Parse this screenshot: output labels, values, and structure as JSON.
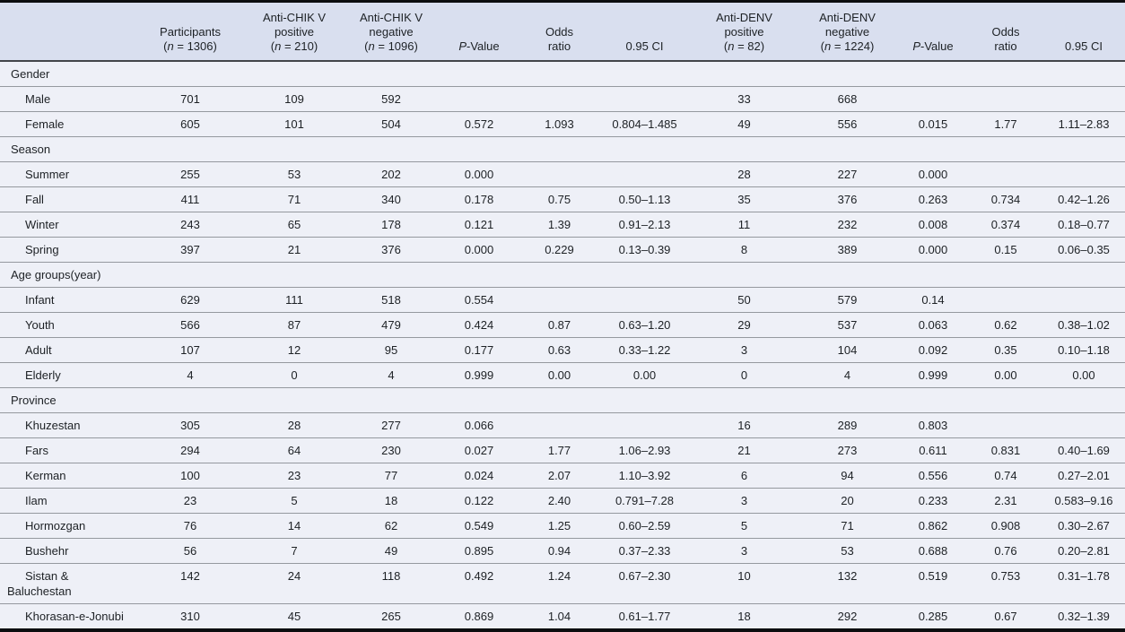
{
  "colors": {
    "header_bg": "#d9dfef",
    "row_bg": "#eef0f7",
    "rule_thin": "#95999f",
    "rule_dark": "#43464a",
    "border_black": "#0c0d0f",
    "text": "#1d2125"
  },
  "table": {
    "columns": [
      {
        "id": "label",
        "header": ""
      },
      {
        "id": "participants",
        "header": "Participants\n(*n* = 1306)"
      },
      {
        "id": "chik_positive",
        "header": "Anti-CHIK V\npositive\n(*n* = 210)"
      },
      {
        "id": "chik_negative",
        "header": "Anti-CHIK V\nnegative\n(*n* = 1096)"
      },
      {
        "id": "chik_p_value",
        "header": "*P*-Value"
      },
      {
        "id": "chik_odds_ratio",
        "header": "Odds\nratio"
      },
      {
        "id": "chik_ci",
        "header": "0.95 CI"
      },
      {
        "id": "denv_positive",
        "header": "Anti-DENV\npositive\n(*n* = 82)"
      },
      {
        "id": "denv_negative",
        "header": "Anti-DENV\nnegative\n(*n* = 1224)"
      },
      {
        "id": "denv_p_value",
        "header": "*P*-Value"
      },
      {
        "id": "denv_odds_ratio",
        "header": "Odds\nratio"
      },
      {
        "id": "denv_ci",
        "header": "0.95 CI"
      }
    ],
    "sections": [
      {
        "name": "Gender",
        "rows": [
          {
            "label": "Male",
            "cells": [
              "701",
              "109",
              "592",
              "",
              "",
              "",
              "33",
              "668",
              "",
              "",
              ""
            ]
          },
          {
            "label": "Female",
            "cells": [
              "605",
              "101",
              "504",
              "0.572",
              "1.093",
              "0.804–1.485",
              "49",
              "556",
              "0.015",
              "1.77",
              "1.11–2.83"
            ]
          }
        ]
      },
      {
        "name": "Season",
        "rows": [
          {
            "label": "Summer",
            "cells": [
              "255",
              "53",
              "202",
              "0.000",
              "",
              "",
              "28",
              "227",
              "0.000",
              "",
              ""
            ]
          },
          {
            "label": "Fall",
            "cells": [
              "411",
              "71",
              "340",
              "0.178",
              "0.75",
              "0.50–1.13",
              "35",
              "376",
              "0.263",
              "0.734",
              "0.42–1.26"
            ]
          },
          {
            "label": "Winter",
            "cells": [
              "243",
              "65",
              "178",
              "0.121",
              "1.39",
              "0.91–2.13",
              "11",
              "232",
              "0.008",
              "0.374",
              "0.18–0.77"
            ]
          },
          {
            "label": "Spring",
            "cells": [
              "397",
              "21",
              "376",
              "0.000",
              "0.229",
              "0.13–0.39",
              "8",
              "389",
              "0.000",
              "0.15",
              "0.06–0.35"
            ]
          }
        ]
      },
      {
        "name": "Age groups(year)",
        "rows": [
          {
            "label": "Infant",
            "cells": [
              "629",
              "111",
              "518",
              "0.554",
              "",
              "",
              "50",
              "579",
              "0.14",
              "",
              ""
            ]
          },
          {
            "label": "Youth",
            "cells": [
              "566",
              "87",
              "479",
              "0.424",
              "0.87",
              "0.63–1.20",
              "29",
              "537",
              "0.063",
              "0.62",
              "0.38–1.02"
            ]
          },
          {
            "label": "Adult",
            "cells": [
              "107",
              "12",
              "95",
              "0.177",
              "0.63",
              "0.33–1.22",
              "3",
              "104",
              "0.092",
              "0.35",
              "0.10–1.18"
            ]
          },
          {
            "label": "Elderly",
            "cells": [
              "4",
              "0",
              "4",
              "0.999",
              "0.00",
              "0.00",
              "0",
              "4",
              "0.999",
              "0.00",
              "0.00"
            ]
          }
        ]
      },
      {
        "name": "Province",
        "rows": [
          {
            "label": "Khuzestan",
            "cells": [
              "305",
              "28",
              "277",
              "0.066",
              "",
              "",
              "16",
              "289",
              "0.803",
              "",
              ""
            ]
          },
          {
            "label": "Fars",
            "cells": [
              "294",
              "64",
              "230",
              "0.027",
              "1.77",
              "1.06–2.93",
              "21",
              "273",
              "0.611",
              "0.831",
              "0.40–1.69"
            ]
          },
          {
            "label": "Kerman",
            "cells": [
              "100",
              "23",
              "77",
              "0.024",
              "2.07",
              "1.10–3.92",
              "6",
              "94",
              "0.556",
              "0.74",
              "0.27–2.01"
            ]
          },
          {
            "label": "Ilam",
            "cells": [
              "23",
              "5",
              "18",
              "0.122",
              "2.40",
              "0.791–7.28",
              "3",
              "20",
              "0.233",
              "2.31",
              "0.583–9.16"
            ]
          },
          {
            "label": "Hormozgan",
            "cells": [
              "76",
              "14",
              "62",
              "0.549",
              "1.25",
              "0.60–2.59",
              "5",
              "71",
              "0.862",
              "0.908",
              "0.30–2.67"
            ]
          },
          {
            "label": "Bushehr",
            "cells": [
              "56",
              "7",
              "49",
              "0.895",
              "0.94",
              "0.37–2.33",
              "3",
              "53",
              "0.688",
              "0.76",
              "0.20–2.81"
            ]
          },
          {
            "label": "Sistan & Baluchestan",
            "cells": [
              "142",
              "24",
              "118",
              "0.492",
              "1.24",
              "0.67–2.30",
              "10",
              "132",
              "0.519",
              "0.753",
              "0.31–1.78"
            ]
          },
          {
            "label": "Khorasan-e-Jonubi",
            "cells": [
              "310",
              "45",
              "265",
              "0.869",
              "1.04",
              "0.61–1.77",
              "18",
              "292",
              "0.285",
              "0.67",
              "0.32–1.39"
            ]
          }
        ]
      }
    ]
  }
}
